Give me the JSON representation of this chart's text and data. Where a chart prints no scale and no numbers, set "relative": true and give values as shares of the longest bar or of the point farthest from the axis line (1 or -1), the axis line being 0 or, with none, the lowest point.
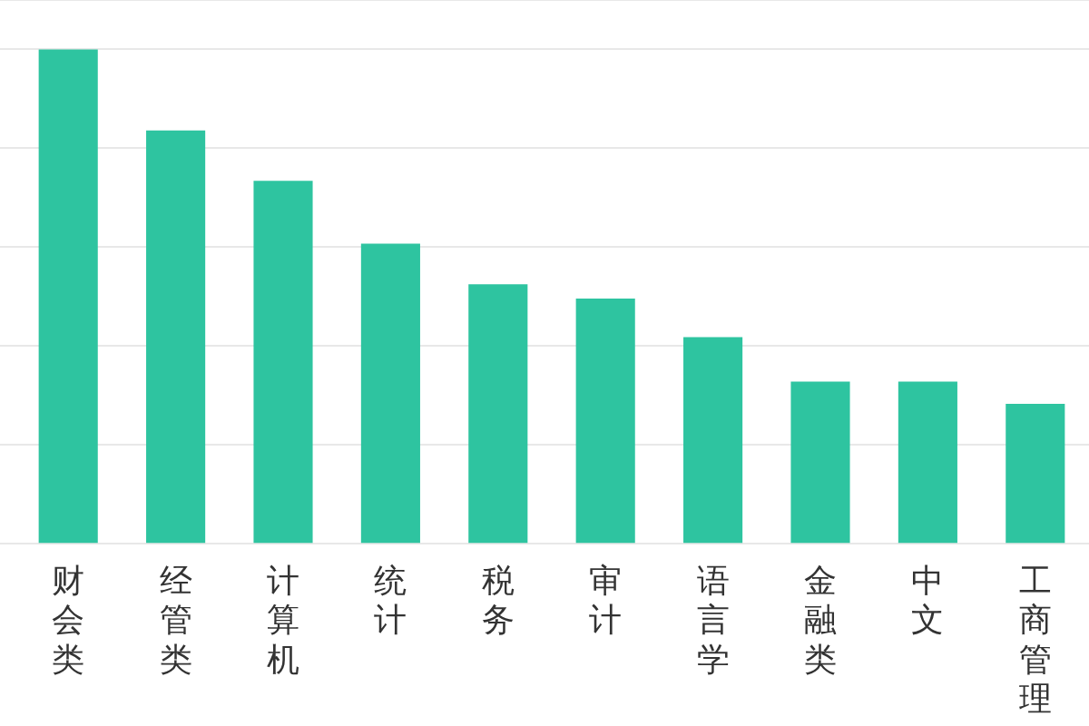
{
  "chart_data": {
    "type": "bar",
    "relative": true,
    "grid": "y",
    "color": "#2ec4a0",
    "categories": [
      "财会类",
      "经管类",
      "计算机",
      "统计",
      "税务",
      "审计",
      "语言学",
      "金融类",
      "中文",
      "工商管理"
    ],
    "values": [
      1,
      0.836,
      0.734,
      0.607,
      0.525,
      0.496,
      0.418,
      0.328,
      0.328,
      0.283
    ]
  }
}
